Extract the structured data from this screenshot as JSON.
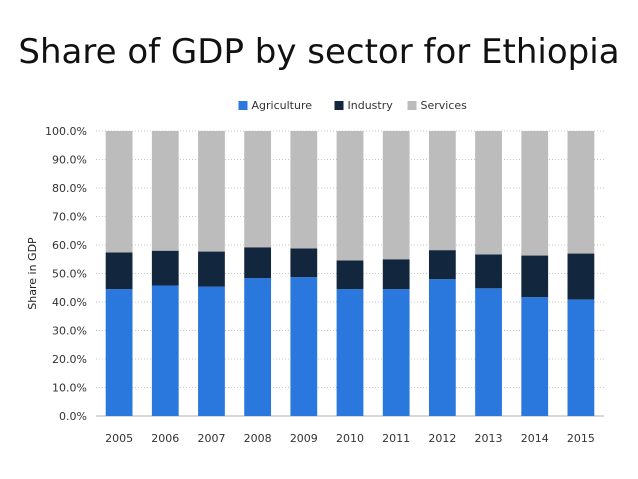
{
  "chart_data": {
    "type": "bar",
    "stacked": true,
    "title": "Share of GDP by sector for Ethiopia",
    "xlabel": "",
    "ylabel": "Share in GDP",
    "ylim": [
      0,
      100
    ],
    "y_tick_labels": [
      "0.0%",
      "10.0%",
      "20.0%",
      "30.0%",
      "40.0%",
      "50.0%",
      "60.0%",
      "70.0%",
      "80.0%",
      "90.0%",
      "100.0%"
    ],
    "y_ticks": [
      0,
      10,
      20,
      30,
      40,
      50,
      60,
      70,
      80,
      90,
      100
    ],
    "categories": [
      "2005",
      "2006",
      "2007",
      "2008",
      "2009",
      "2010",
      "2011",
      "2012",
      "2013",
      "2014",
      "2015"
    ],
    "series": [
      {
        "name": "Agriculture",
        "color": "#2a78dd",
        "values": [
          44.5,
          45.8,
          45.4,
          48.4,
          48.7,
          44.5,
          44.5,
          48.0,
          44.8,
          41.7,
          40.9
        ]
      },
      {
        "name": "Industry",
        "color": "#12263e",
        "values": [
          12.9,
          12.2,
          12.3,
          10.8,
          10.1,
          10.1,
          10.5,
          10.2,
          11.9,
          14.6,
          16.1
        ]
      },
      {
        "name": "Services",
        "color": "#bcbcbc",
        "values": [
          42.6,
          42.0,
          42.3,
          40.8,
          41.2,
          45.4,
          45.0,
          41.8,
          43.3,
          43.7,
          43.0
        ]
      }
    ],
    "grid": true,
    "legend": "top-center"
  }
}
